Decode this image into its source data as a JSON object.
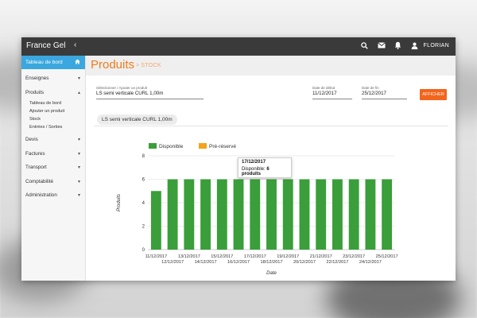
{
  "app": {
    "brand": "France Gel",
    "user_name": "FLORIAN",
    "icons": [
      "search-icon",
      "mail-icon",
      "bell-icon",
      "user-icon"
    ]
  },
  "sidebar": {
    "active_label": "Tableau de bord",
    "items": [
      {
        "label": "Enseignes"
      },
      {
        "label": "Produits"
      },
      {
        "label": "Devis"
      },
      {
        "label": "Factures"
      },
      {
        "label": "Transport"
      },
      {
        "label": "Comptabilité"
      },
      {
        "label": "Administration"
      }
    ],
    "produits_sub": [
      "Tableau de bord",
      "Ajouter un produit",
      "Stock",
      "Entrées / Sorties"
    ]
  },
  "page": {
    "title": "Produits",
    "breadcrumb": "STOCK"
  },
  "filters": {
    "product_label": "Sélectionner / Ajouter un produit",
    "product_value": "LS semi verticale CURL 1,00m",
    "start_label": "Date de début",
    "start_value": "11/12/2017",
    "end_label": "Date de fin",
    "end_value": "25/12/2017",
    "submit_label": "AFFICHER"
  },
  "chip_label": "LS semi verticale CURL 1,00m",
  "colors": {
    "accent": "#f07b1d",
    "sidebar_active": "#3aa7df",
    "button": "#f2651c",
    "disponible": "#3a9e3a",
    "pre_reserve": "#f5a31a"
  },
  "tooltip": {
    "date": "17/12/2017",
    "text_prefix": "Disponible: ",
    "text_value": "6 produits"
  },
  "chart_data": {
    "type": "bar",
    "categories": [
      "11/12/2017",
      "12/12/2017",
      "13/12/2017",
      "14/12/2017",
      "15/12/2017",
      "16/12/2017",
      "17/12/2017",
      "18/12/2017",
      "19/12/2017",
      "20/12/2017",
      "21/12/2017",
      "22/12/2017",
      "23/12/2017",
      "24/12/2017",
      "25/12/2017"
    ],
    "series": [
      {
        "name": "Disponible",
        "color": "#3a9e3a",
        "values": [
          5,
          6,
          6,
          6,
          6,
          6,
          6,
          6,
          6,
          6,
          6,
          6,
          6,
          6,
          6
        ]
      },
      {
        "name": "Pré-réservé",
        "color": "#f5a31a",
        "values": [
          0,
          0,
          0,
          0,
          0,
          0,
          0,
          0,
          0,
          0,
          0,
          0,
          0,
          0,
          0
        ]
      }
    ],
    "xlabel": "Date",
    "ylabel": "Produits",
    "ylim": [
      0,
      8
    ],
    "yticks": [
      0,
      2,
      4,
      6,
      8
    ],
    "legend_position": "top-left",
    "grid": true
  }
}
